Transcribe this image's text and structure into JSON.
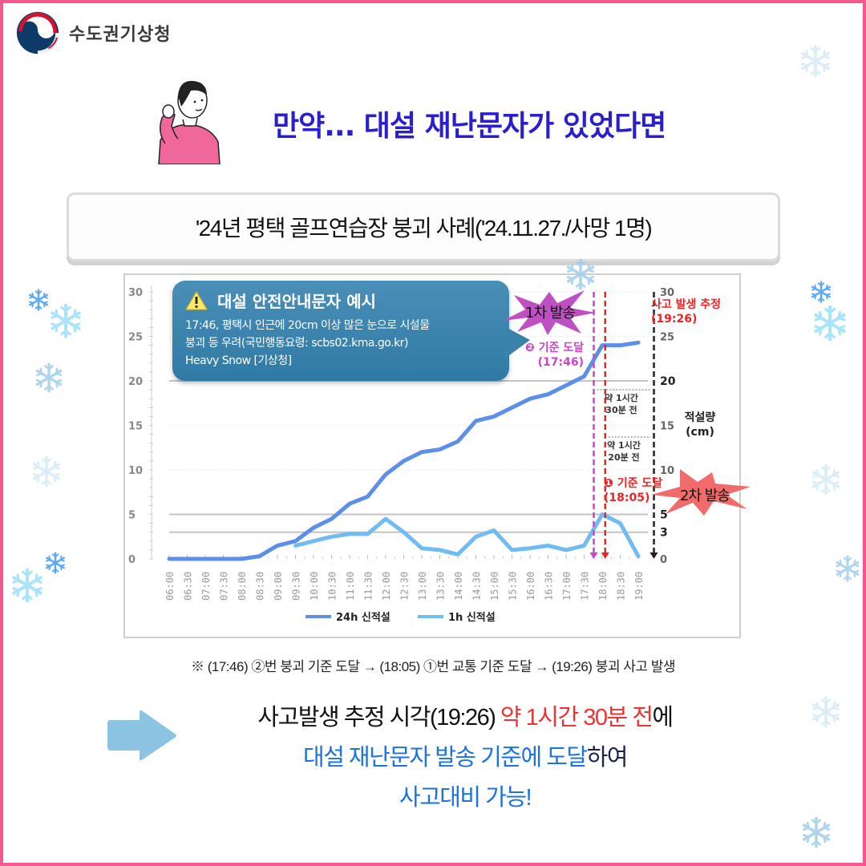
{
  "header": {
    "agency_name": "수도권기상청",
    "logo_icon": "korea-government-taegeuk-logo"
  },
  "headline": "만약... 대설 재난문자가 있었다면",
  "case_title": "'24년 평택 골프연습장 붕괴 사례('24.11.27./사망 1명)",
  "callout": {
    "icon": "warning-triangle-icon",
    "title": "대설 안전안내문자 예시",
    "line1": "17:46, 평택시 인근에 20cm 이상 많은 눈으로 시설물",
    "line2": "붕괴 등 우려(국민행동요령: scbs02.kma.go.kr)",
    "line3": "Heavy Snow [기상청]"
  },
  "annotations": {
    "first_send": "1차 발송",
    "second_send": "2차 발송",
    "criterion2_label": "❷ 기준 도달",
    "criterion2_time": "(17:46)",
    "criterion1_label": "❶ 기준 도달",
    "criterion1_time": "(18:05)",
    "accident_label": "사고 발생 추정",
    "accident_time": "(19:26)",
    "gap1_line1": "약 1시간",
    "gap1_line2": "30분 전",
    "gap2_line1": "약 1시간",
    "gap2_line2": "20분 전",
    "right_axis_title_1": "적설량",
    "right_axis_title_2": "(cm)"
  },
  "chart_data": {
    "type": "line",
    "title": "",
    "xlabel": "",
    "ylabel": "적설량 (cm)",
    "ylim": [
      0,
      30
    ],
    "yticks_left": [
      0,
      5,
      10,
      15,
      20,
      25,
      30
    ],
    "yticks_right": [
      0,
      3,
      5,
      10,
      15,
      20,
      25,
      30
    ],
    "threshold_lines": [
      3,
      5,
      20
    ],
    "x": [
      "06:00",
      "06:30",
      "07:00",
      "07:30",
      "08:00",
      "08:30",
      "09:00",
      "09:30",
      "10:00",
      "10:30",
      "11:00",
      "11:30",
      "12:00",
      "12:30",
      "13:00",
      "13:30",
      "14:00",
      "14:30",
      "15:00",
      "15:30",
      "16:00",
      "16:30",
      "17:00",
      "17:30",
      "18:00",
      "18:30",
      "19:00"
    ],
    "series": [
      {
        "name": "24h 신적설",
        "color": "#5b8fe8",
        "values": [
          0,
          0,
          0,
          0,
          0,
          0.3,
          1.5,
          2.0,
          3.5,
          4.5,
          6.2,
          7.0,
          9.5,
          11.0,
          12.0,
          12.3,
          13.2,
          15.5,
          16.0,
          17.0,
          18.0,
          18.5,
          19.5,
          20.5,
          24.0,
          24.0,
          24.3
        ]
      },
      {
        "name": "1h 신적설",
        "color": "#6fbcf5",
        "values": [
          null,
          null,
          null,
          null,
          null,
          null,
          null,
          1.5,
          2.0,
          2.5,
          2.8,
          2.8,
          4.5,
          3.0,
          1.2,
          1.0,
          0.5,
          2.5,
          3.2,
          1.0,
          1.2,
          1.5,
          1.0,
          1.5,
          5.0,
          4.0,
          0.3
        ]
      }
    ],
    "events": [
      {
        "time": "17:46",
        "label": "② 기준 도달",
        "color": "#cc44cc"
      },
      {
        "time": "18:05",
        "label": "① 기준 도달",
        "color": "#ee2222"
      },
      {
        "time": "19:26",
        "label": "사고 발생 추정",
        "color": "#222222"
      }
    ],
    "legend_position": "bottom"
  },
  "footnote": "※ (17:46) ②번 붕괴 기준 도달 → (18:05) ①번 교통 기준 도달 → (19:26) 붕괴 사고 발생",
  "conclusion": {
    "line1_a": "사고발생 추정 시각(19:26) ",
    "line1_b": "약 1시간 30분 전",
    "line1_c": "에",
    "line2_a": "대설 재난문자 발송 기준에 도달",
    "line2_b": "하여",
    "line3": "사고대비 가능!"
  },
  "colors": {
    "frame": "#f4588e",
    "headline": "#2a1fd0",
    "accent_red": "#ee3333",
    "accent_blue": "#1a73e0",
    "series_24h": "#5b8fe8",
    "series_1h": "#6fbcf5"
  }
}
